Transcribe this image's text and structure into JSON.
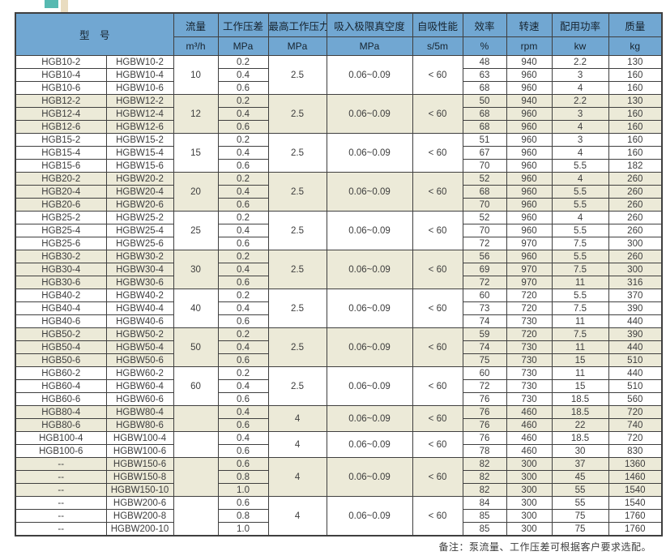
{
  "note": "备注：泵流量、工作压差可根据客户要求选配。",
  "colors": {
    "header_bg": "#71a7d2",
    "shaded_row_bg": "#ecead8",
    "border": "#3f3f3f",
    "deco_teal": "#57b9b1",
    "deco_beige": "#e9dcc0"
  },
  "table": {
    "columns": [
      {
        "key": "model",
        "label": "型　号",
        "unit": ""
      },
      {
        "key": "flow",
        "label": "流量",
        "unit": "m³/h"
      },
      {
        "key": "pressure",
        "label": "工作压差",
        "unit": "MPa"
      },
      {
        "key": "max_pressure",
        "label": "最高工作压力",
        "unit": "MPa"
      },
      {
        "key": "vacuum",
        "label": "吸入极限真空度",
        "unit": "MPa"
      },
      {
        "key": "self_priming",
        "label": "自吸性能",
        "unit": "s/5m"
      },
      {
        "key": "efficiency",
        "label": "效率",
        "unit": "%"
      },
      {
        "key": "speed",
        "label": "转速",
        "unit": "rpm"
      },
      {
        "key": "power",
        "label": "配用功率",
        "unit": "kw"
      },
      {
        "key": "mass",
        "label": "质量",
        "unit": "kg"
      }
    ],
    "groups": [
      {
        "flow": "10",
        "max_pressure": "2.5",
        "vacuum": "0.06~0.09",
        "self_priming": "< 60",
        "shaded": false,
        "rows": [
          {
            "model_b": "HGB10-2",
            "model_w": "HGBW10-2",
            "pressure": "0.2",
            "efficiency": "48",
            "speed": "940",
            "power": "2.2",
            "mass": "130"
          },
          {
            "model_b": "HGB10-4",
            "model_w": "HGBW10-4",
            "pressure": "0.4",
            "efficiency": "63",
            "speed": "960",
            "power": "3",
            "mass": "160"
          },
          {
            "model_b": "HGB10-6",
            "model_w": "HGBW10-6",
            "pressure": "0.6",
            "efficiency": "68",
            "speed": "960",
            "power": "4",
            "mass": "160"
          }
        ]
      },
      {
        "flow": "12",
        "max_pressure": "2.5",
        "vacuum": "0.06~0.09",
        "self_priming": "< 60",
        "shaded": true,
        "rows": [
          {
            "model_b": "HGB12-2",
            "model_w": "HGBW12-2",
            "pressure": "0.2",
            "efficiency": "50",
            "speed": "940",
            "power": "2.2",
            "mass": "130"
          },
          {
            "model_b": "HGB12-4",
            "model_w": "HGBW12-4",
            "pressure": "0.4",
            "efficiency": "68",
            "speed": "960",
            "power": "3",
            "mass": "160"
          },
          {
            "model_b": "HGB12-6",
            "model_w": "HGBW12-6",
            "pressure": "0.6",
            "efficiency": "68",
            "speed": "960",
            "power": "4",
            "mass": "160"
          }
        ]
      },
      {
        "flow": "15",
        "max_pressure": "2.5",
        "vacuum": "0.06~0.09",
        "self_priming": "< 60",
        "shaded": false,
        "rows": [
          {
            "model_b": "HGB15-2",
            "model_w": "HGBW15-2",
            "pressure": "0.2",
            "efficiency": "51",
            "speed": "960",
            "power": "3",
            "mass": "160"
          },
          {
            "model_b": "HGB15-4",
            "model_w": "HGBW15-4",
            "pressure": "0.4",
            "efficiency": "67",
            "speed": "960",
            "power": "4",
            "mass": "160"
          },
          {
            "model_b": "HGB15-6",
            "model_w": "HGBW15-6",
            "pressure": "0.6",
            "efficiency": "70",
            "speed": "960",
            "power": "5.5",
            "mass": "182"
          }
        ]
      },
      {
        "flow": "20",
        "max_pressure": "2.5",
        "vacuum": "0.06~0.09",
        "self_priming": "< 60",
        "shaded": true,
        "rows": [
          {
            "model_b": "HGB20-2",
            "model_w": "HGBW20-2",
            "pressure": "0.2",
            "efficiency": "52",
            "speed": "960",
            "power": "4",
            "mass": "260"
          },
          {
            "model_b": "HGB20-4",
            "model_w": "HGBW20-4",
            "pressure": "0.4",
            "efficiency": "68",
            "speed": "960",
            "power": "5.5",
            "mass": "260"
          },
          {
            "model_b": "HGB20-6",
            "model_w": "HGBW20-6",
            "pressure": "0.6",
            "efficiency": "70",
            "speed": "960",
            "power": "5.5",
            "mass": "260"
          }
        ]
      },
      {
        "flow": "25",
        "max_pressure": "2.5",
        "vacuum": "0.06~0.09",
        "self_priming": "< 60",
        "shaded": false,
        "rows": [
          {
            "model_b": "HGB25-2",
            "model_w": "HGBW25-2",
            "pressure": "0.2",
            "efficiency": "52",
            "speed": "960",
            "power": "4",
            "mass": "260"
          },
          {
            "model_b": "HGB25-4",
            "model_w": "HGBW25-4",
            "pressure": "0.4",
            "efficiency": "70",
            "speed": "960",
            "power": "5.5",
            "mass": "260"
          },
          {
            "model_b": "HGB25-6",
            "model_w": "HGBW25-6",
            "pressure": "0.6",
            "efficiency": "72",
            "speed": "970",
            "power": "7.5",
            "mass": "300"
          }
        ]
      },
      {
        "flow": "30",
        "max_pressure": "2.5",
        "vacuum": "0.06~0.09",
        "self_priming": "< 60",
        "shaded": true,
        "rows": [
          {
            "model_b": "HGB30-2",
            "model_w": "HGBW30-2",
            "pressure": "0.2",
            "efficiency": "56",
            "speed": "960",
            "power": "5.5",
            "mass": "260"
          },
          {
            "model_b": "HGB30-4",
            "model_w": "HGBW30-4",
            "pressure": "0.4",
            "efficiency": "69",
            "speed": "970",
            "power": "7.5",
            "mass": "300"
          },
          {
            "model_b": "HGB30-6",
            "model_w": "HGBW30-6",
            "pressure": "0.6",
            "efficiency": "72",
            "speed": "970",
            "power": "11",
            "mass": "316"
          }
        ]
      },
      {
        "flow": "40",
        "max_pressure": "2.5",
        "vacuum": "0.06~0.09",
        "self_priming": "< 60",
        "shaded": false,
        "rows": [
          {
            "model_b": "HGB40-2",
            "model_w": "HGBW40-2",
            "pressure": "0.2",
            "efficiency": "60",
            "speed": "720",
            "power": "5.5",
            "mass": "370"
          },
          {
            "model_b": "HGB40-4",
            "model_w": "HGBW40-4",
            "pressure": "0.4",
            "efficiency": "73",
            "speed": "720",
            "power": "7.5",
            "mass": "390"
          },
          {
            "model_b": "HGB40-6",
            "model_w": "HGBW40-6",
            "pressure": "0.6",
            "efficiency": "74",
            "speed": "730",
            "power": "11",
            "mass": "440"
          }
        ]
      },
      {
        "flow": "50",
        "max_pressure": "2.5",
        "vacuum": "0.06~0.09",
        "self_priming": "< 60",
        "shaded": true,
        "rows": [
          {
            "model_b": "HGB50-2",
            "model_w": "HGBW50-2",
            "pressure": "0.2",
            "efficiency": "59",
            "speed": "720",
            "power": "7.5",
            "mass": "390"
          },
          {
            "model_b": "HGB50-4",
            "model_w": "HGBW50-4",
            "pressure": "0.4",
            "efficiency": "74",
            "speed": "730",
            "power": "11",
            "mass": "440"
          },
          {
            "model_b": "HGB50-6",
            "model_w": "HGBW50-6",
            "pressure": "0.6",
            "efficiency": "75",
            "speed": "730",
            "power": "15",
            "mass": "510"
          }
        ]
      },
      {
        "flow": "60",
        "max_pressure": "2.5",
        "vacuum": "0.06~0.09",
        "self_priming": "< 60",
        "shaded": false,
        "rows": [
          {
            "model_b": "HGB60-2",
            "model_w": "HGBW60-2",
            "pressure": "0.2",
            "efficiency": "60",
            "speed": "730",
            "power": "11",
            "mass": "440"
          },
          {
            "model_b": "HGB60-4",
            "model_w": "HGBW60-4",
            "pressure": "0.4",
            "efficiency": "72",
            "speed": "730",
            "power": "15",
            "mass": "510"
          },
          {
            "model_b": "HGB60-6",
            "model_w": "HGBW60-6",
            "pressure": "0.6",
            "efficiency": "76",
            "speed": "730",
            "power": "18.5",
            "mass": "560"
          }
        ]
      },
      {
        "flow": "",
        "max_pressure": "4",
        "vacuum": "0.06~0.09",
        "self_priming": "< 60",
        "shaded": true,
        "rows": [
          {
            "model_b": "HGB80-4",
            "model_w": "HGBW80-4",
            "pressure": "0.4",
            "efficiency": "76",
            "speed": "460",
            "power": "18.5",
            "mass": "720"
          },
          {
            "model_b": "HGB80-6",
            "model_w": "HGBW80-6",
            "pressure": "0.6",
            "efficiency": "76",
            "speed": "460",
            "power": "22",
            "mass": "740"
          }
        ]
      },
      {
        "flow": "",
        "max_pressure": "4",
        "vacuum": "0.06~0.09",
        "self_priming": "< 60",
        "shaded": false,
        "rows": [
          {
            "model_b": "HGB100-4",
            "model_w": "HGBW100-4",
            "pressure": "0.4",
            "efficiency": "76",
            "speed": "460",
            "power": "18.5",
            "mass": "720"
          },
          {
            "model_b": "HGB100-6",
            "model_w": "HGBW100-6",
            "pressure": "0.6",
            "efficiency": "78",
            "speed": "460",
            "power": "30",
            "mass": "830"
          }
        ]
      },
      {
        "flow": "",
        "max_pressure": "4",
        "vacuum": "0.06~0.09",
        "self_priming": "< 60",
        "shaded": true,
        "rows": [
          {
            "model_b": "--",
            "model_w": "HGBW150-6",
            "pressure": "0.6",
            "efficiency": "82",
            "speed": "300",
            "power": "37",
            "mass": "1360"
          },
          {
            "model_b": "--",
            "model_w": "HGBW150-8",
            "pressure": "0.8",
            "efficiency": "82",
            "speed": "300",
            "power": "45",
            "mass": "1460"
          },
          {
            "model_b": "--",
            "model_w": "HGBW150-10",
            "pressure": "1.0",
            "efficiency": "82",
            "speed": "300",
            "power": "55",
            "mass": "1540"
          }
        ]
      },
      {
        "flow": "",
        "max_pressure": "4",
        "vacuum": "0.06~0.09",
        "self_priming": "< 60",
        "shaded": false,
        "rows": [
          {
            "model_b": "--",
            "model_w": "HGBW200-6",
            "pressure": "0.6",
            "efficiency": "84",
            "speed": "300",
            "power": "55",
            "mass": "1540"
          },
          {
            "model_b": "--",
            "model_w": "HGBW200-8",
            "pressure": "0.8",
            "efficiency": "85",
            "speed": "300",
            "power": "75",
            "mass": "1760"
          },
          {
            "model_b": "--",
            "model_w": "HGBW200-10",
            "pressure": "1.0",
            "efficiency": "85",
            "speed": "300",
            "power": "75",
            "mass": "1760"
          }
        ]
      }
    ]
  }
}
